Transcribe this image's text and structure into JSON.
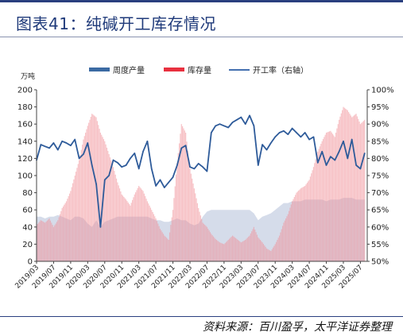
{
  "figure": {
    "title": "图表41：纯碱开工库存情况",
    "source": "资料来源：百川盈孚，太平洋证券整理"
  },
  "colors": {
    "bar": "#f08f98",
    "area": "#c7d0e3",
    "line": "#2e5b9a",
    "legend_weekly": "#3b6aa3",
    "legend_inventory": "#e8303f",
    "legend_rate": "#4470b0",
    "accent": "#1f3a7a"
  },
  "chart_data": {
    "type": "line",
    "title": "",
    "ylabel": "万吨",
    "ylim": [
      0,
      200
    ],
    "y_ticks": [
      "0",
      "20",
      "40",
      "60",
      "80",
      "100",
      "120",
      "140",
      "160",
      "180",
      "200"
    ],
    "y2lim": [
      50,
      100
    ],
    "y2_ticks": [
      "50%",
      "55%",
      "60%",
      "65%",
      "70%",
      "75%",
      "80%",
      "85%",
      "90%",
      "95%",
      "100%"
    ],
    "legend_position": "top",
    "legend": [
      "周度产量",
      "库存量",
      "开工率（右轴）"
    ],
    "x_tick_labels": [
      "2019/03",
      "2019/07",
      "2019/11",
      "2020/03",
      "2020/07",
      "2020/11",
      "2021/03",
      "2021/07",
      "2021/11",
      "2022/03",
      "2022/07",
      "2022/11",
      "2023/03",
      "2023/07",
      "2023/11",
      "2024/03",
      "2024/07",
      "2024/11",
      "2025/03",
      "2025/07"
    ],
    "x_start": "2019/03",
    "x_step": "1 month",
    "weekly_output": [
      {
        "x": "2019/03",
        "y": 118
      },
      {
        "x": "2019/04",
        "y": 136
      },
      {
        "x": "2019/05",
        "y": 134
      },
      {
        "x": "2019/06",
        "y": 132
      },
      {
        "x": "2019/07",
        "y": 138
      },
      {
        "x": "2019/08",
        "y": 130
      },
      {
        "x": "2019/09",
        "y": 140
      },
      {
        "x": "2019/10",
        "y": 138
      },
      {
        "x": "2019/11",
        "y": 135
      },
      {
        "x": "2019/12",
        "y": 142
      },
      {
        "x": "2020/01",
        "y": 120
      },
      {
        "x": "2020/02",
        "y": 125
      },
      {
        "x": "2020/03",
        "y": 138
      },
      {
        "x": "2020/04",
        "y": 112
      },
      {
        "x": "2020/05",
        "y": 90
      },
      {
        "x": "2020/06",
        "y": 40
      },
      {
        "x": "2020/07",
        "y": 95
      },
      {
        "x": "2020/08",
        "y": 100
      },
      {
        "x": "2020/09",
        "y": 118
      },
      {
        "x": "2020/10",
        "y": 115
      },
      {
        "x": "2020/11",
        "y": 110
      },
      {
        "x": "2020/12",
        "y": 112
      },
      {
        "x": "2021/01",
        "y": 120
      },
      {
        "x": "2021/02",
        "y": 126
      },
      {
        "x": "2021/03",
        "y": 108
      },
      {
        "x": "2021/04",
        "y": 128
      },
      {
        "x": "2021/05",
        "y": 140
      },
      {
        "x": "2021/06",
        "y": 108
      },
      {
        "x": "2021/07",
        "y": 88
      },
      {
        "x": "2021/08",
        "y": 95
      },
      {
        "x": "2021/09",
        "y": 86
      },
      {
        "x": "2021/10",
        "y": 92
      },
      {
        "x": "2021/11",
        "y": 98
      },
      {
        "x": "2021/12",
        "y": 112
      },
      {
        "x": "2022/01",
        "y": 132
      },
      {
        "x": "2022/02",
        "y": 135
      },
      {
        "x": "2022/03",
        "y": 110
      },
      {
        "x": "2022/04",
        "y": 108
      },
      {
        "x": "2022/05",
        "y": 114
      },
      {
        "x": "2022/06",
        "y": 110
      },
      {
        "x": "2022/07",
        "y": 105
      },
      {
        "x": "2022/08",
        "y": 150
      },
      {
        "x": "2022/09",
        "y": 158
      },
      {
        "x": "2022/10",
        "y": 160
      },
      {
        "x": "2022/11",
        "y": 158
      },
      {
        "x": "2022/12",
        "y": 156
      },
      {
        "x": "2023/01",
        "y": 162
      },
      {
        "x": "2023/02",
        "y": 165
      },
      {
        "x": "2023/03",
        "y": 168
      },
      {
        "x": "2023/04",
        "y": 160
      },
      {
        "x": "2023/05",
        "y": 170
      },
      {
        "x": "2023/06",
        "y": 158
      },
      {
        "x": "2023/07",
        "y": 112
      },
      {
        "x": "2023/08",
        "y": 136
      },
      {
        "x": "2023/09",
        "y": 130
      },
      {
        "x": "2023/10",
        "y": 138
      },
      {
        "x": "2023/11",
        "y": 145
      },
      {
        "x": "2023/12",
        "y": 150
      },
      {
        "x": "2024/01",
        "y": 152
      },
      {
        "x": "2024/02",
        "y": 148
      },
      {
        "x": "2024/03",
        "y": 155
      },
      {
        "x": "2024/04",
        "y": 150
      },
      {
        "x": "2024/05",
        "y": 145
      },
      {
        "x": "2024/06",
        "y": 150
      },
      {
        "x": "2024/07",
        "y": 142
      },
      {
        "x": "2024/08",
        "y": 145
      },
      {
        "x": "2024/09",
        "y": 115
      },
      {
        "x": "2024/10",
        "y": 128
      },
      {
        "x": "2024/11",
        "y": 112
      },
      {
        "x": "2024/12",
        "y": 122
      },
      {
        "x": "2025/01",
        "y": 118
      },
      {
        "x": "2025/02",
        "y": 128
      },
      {
        "x": "2025/03",
        "y": 140
      },
      {
        "x": "2025/04",
        "y": 120
      },
      {
        "x": "2025/05",
        "y": 142
      },
      {
        "x": "2025/06",
        "y": 112
      },
      {
        "x": "2025/07",
        "y": 108
      },
      {
        "x": "2025/08",
        "y": 126
      }
    ],
    "inventory": [
      {
        "x": "2019/03",
        "y": 42
      },
      {
        "x": "2019/04",
        "y": 48
      },
      {
        "x": "2019/05",
        "y": 45
      },
      {
        "x": "2019/06",
        "y": 50
      },
      {
        "x": "2019/07",
        "y": 40
      },
      {
        "x": "2019/08",
        "y": 48
      },
      {
        "x": "2019/09",
        "y": 62
      },
      {
        "x": "2019/10",
        "y": 70
      },
      {
        "x": "2019/11",
        "y": 82
      },
      {
        "x": "2019/12",
        "y": 100
      },
      {
        "x": "2020/01",
        "y": 118
      },
      {
        "x": "2020/02",
        "y": 142
      },
      {
        "x": "2020/03",
        "y": 158
      },
      {
        "x": "2020/04",
        "y": 172
      },
      {
        "x": "2020/05",
        "y": 168
      },
      {
        "x": "2020/06",
        "y": 150
      },
      {
        "x": "2020/07",
        "y": 140
      },
      {
        "x": "2020/08",
        "y": 125
      },
      {
        "x": "2020/09",
        "y": 110
      },
      {
        "x": "2020/10",
        "y": 92
      },
      {
        "x": "2020/11",
        "y": 78
      },
      {
        "x": "2020/12",
        "y": 72
      },
      {
        "x": "2021/01",
        "y": 65
      },
      {
        "x": "2021/02",
        "y": 78
      },
      {
        "x": "2021/03",
        "y": 88
      },
      {
        "x": "2021/04",
        "y": 82
      },
      {
        "x": "2021/05",
        "y": 70
      },
      {
        "x": "2021/06",
        "y": 60
      },
      {
        "x": "2021/07",
        "y": 50
      },
      {
        "x": "2021/08",
        "y": 38
      },
      {
        "x": "2021/09",
        "y": 30
      },
      {
        "x": "2021/10",
        "y": 25
      },
      {
        "x": "2021/11",
        "y": 60
      },
      {
        "x": "2021/12",
        "y": 115
      },
      {
        "x": "2022/01",
        "y": 160
      },
      {
        "x": "2022/02",
        "y": 150
      },
      {
        "x": "2022/03",
        "y": 108
      },
      {
        "x": "2022/04",
        "y": 85
      },
      {
        "x": "2022/05",
        "y": 62
      },
      {
        "x": "2022/06",
        "y": 45
      },
      {
        "x": "2022/07",
        "y": 40
      },
      {
        "x": "2022/08",
        "y": 32
      },
      {
        "x": "2022/09",
        "y": 26
      },
      {
        "x": "2022/10",
        "y": 22
      },
      {
        "x": "2022/11",
        "y": 20
      },
      {
        "x": "2022/12",
        "y": 25
      },
      {
        "x": "2023/01",
        "y": 30
      },
      {
        "x": "2023/02",
        "y": 26
      },
      {
        "x": "2023/03",
        "y": 22
      },
      {
        "x": "2023/04",
        "y": 25
      },
      {
        "x": "2023/05",
        "y": 30
      },
      {
        "x": "2023/06",
        "y": 40
      },
      {
        "x": "2023/07",
        "y": 28
      },
      {
        "x": "2023/08",
        "y": 22
      },
      {
        "x": "2023/09",
        "y": 15
      },
      {
        "x": "2023/10",
        "y": 12
      },
      {
        "x": "2023/11",
        "y": 20
      },
      {
        "x": "2023/12",
        "y": 30
      },
      {
        "x": "2024/01",
        "y": 45
      },
      {
        "x": "2024/02",
        "y": 55
      },
      {
        "x": "2024/03",
        "y": 70
      },
      {
        "x": "2024/04",
        "y": 80
      },
      {
        "x": "2024/05",
        "y": 85
      },
      {
        "x": "2024/06",
        "y": 88
      },
      {
        "x": "2024/07",
        "y": 95
      },
      {
        "x": "2024/08",
        "y": 110
      },
      {
        "x": "2024/09",
        "y": 128
      },
      {
        "x": "2024/10",
        "y": 140
      },
      {
        "x": "2024/11",
        "y": 150
      },
      {
        "x": "2024/12",
        "y": 152
      },
      {
        "x": "2025/01",
        "y": 145
      },
      {
        "x": "2025/02",
        "y": 165
      },
      {
        "x": "2025/03",
        "y": 180
      },
      {
        "x": "2025/04",
        "y": 176
      },
      {
        "x": "2025/05",
        "y": 168
      },
      {
        "x": "2025/06",
        "y": 172
      },
      {
        "x": "2025/07",
        "y": 160
      },
      {
        "x": "2025/08",
        "y": 165
      }
    ],
    "operating_rate_right_axis": [
      {
        "x": "2019/03",
        "y": 63
      },
      {
        "x": "2019/04",
        "y": 63
      },
      {
        "x": "2019/05",
        "y": 62.5
      },
      {
        "x": "2019/06",
        "y": 63
      },
      {
        "x": "2019/07",
        "y": 63
      },
      {
        "x": "2019/08",
        "y": 63.5
      },
      {
        "x": "2019/09",
        "y": 63
      },
      {
        "x": "2019/10",
        "y": 62.5
      },
      {
        "x": "2019/11",
        "y": 62
      },
      {
        "x": "2019/12",
        "y": 63
      },
      {
        "x": "2020/01",
        "y": 63
      },
      {
        "x": "2020/02",
        "y": 62.5
      },
      {
        "x": "2020/03",
        "y": 61
      },
      {
        "x": "2020/04",
        "y": 60
      },
      {
        "x": "2020/05",
        "y": 62
      },
      {
        "x": "2020/06",
        "y": 60
      },
      {
        "x": "2020/07",
        "y": 61.5
      },
      {
        "x": "2020/08",
        "y": 62
      },
      {
        "x": "2020/09",
        "y": 62.5
      },
      {
        "x": "2020/10",
        "y": 63
      },
      {
        "x": "2020/11",
        "y": 63
      },
      {
        "x": "2020/12",
        "y": 63
      },
      {
        "x": "2021/01",
        "y": 63
      },
      {
        "x": "2021/02",
        "y": 63
      },
      {
        "x": "2021/03",
        "y": 63
      },
      {
        "x": "2021/04",
        "y": 63
      },
      {
        "x": "2021/05",
        "y": 63
      },
      {
        "x": "2021/06",
        "y": 62.5
      },
      {
        "x": "2021/07",
        "y": 62
      },
      {
        "x": "2021/08",
        "y": 62
      },
      {
        "x": "2021/09",
        "y": 61.5
      },
      {
        "x": "2021/10",
        "y": 61.5
      },
      {
        "x": "2021/11",
        "y": 62
      },
      {
        "x": "2021/12",
        "y": 62.5
      },
      {
        "x": "2022/01",
        "y": 62
      },
      {
        "x": "2022/02",
        "y": 62
      },
      {
        "x": "2022/03",
        "y": 61
      },
      {
        "x": "2022/04",
        "y": 60.5
      },
      {
        "x": "2022/05",
        "y": 61
      },
      {
        "x": "2022/06",
        "y": 63
      },
      {
        "x": "2022/07",
        "y": 64.5
      },
      {
        "x": "2022/08",
        "y": 65
      },
      {
        "x": "2022/09",
        "y": 65
      },
      {
        "x": "2022/10",
        "y": 65
      },
      {
        "x": "2022/11",
        "y": 65
      },
      {
        "x": "2022/12",
        "y": 65
      },
      {
        "x": "2023/01",
        "y": 65
      },
      {
        "x": "2023/02",
        "y": 65
      },
      {
        "x": "2023/03",
        "y": 65
      },
      {
        "x": "2023/04",
        "y": 65
      },
      {
        "x": "2023/05",
        "y": 65
      },
      {
        "x": "2023/06",
        "y": 64
      },
      {
        "x": "2023/07",
        "y": 62
      },
      {
        "x": "2023/08",
        "y": 63
      },
      {
        "x": "2023/09",
        "y": 63.5
      },
      {
        "x": "2023/10",
        "y": 64
      },
      {
        "x": "2023/11",
        "y": 65
      },
      {
        "x": "2023/12",
        "y": 66
      },
      {
        "x": "2024/01",
        "y": 67
      },
      {
        "x": "2024/02",
        "y": 67
      },
      {
        "x": "2024/03",
        "y": 67.5
      },
      {
        "x": "2024/04",
        "y": 67.5
      },
      {
        "x": "2024/05",
        "y": 67.5
      },
      {
        "x": "2024/06",
        "y": 68
      },
      {
        "x": "2024/07",
        "y": 68
      },
      {
        "x": "2024/08",
        "y": 68
      },
      {
        "x": "2024/09",
        "y": 68
      },
      {
        "x": "2024/10",
        "y": 68
      },
      {
        "x": "2024/11",
        "y": 67.5
      },
      {
        "x": "2024/12",
        "y": 68
      },
      {
        "x": "2025/01",
        "y": 68
      },
      {
        "x": "2025/02",
        "y": 68
      },
      {
        "x": "2025/03",
        "y": 68.5
      },
      {
        "x": "2025/04",
        "y": 68.5
      },
      {
        "x": "2025/05",
        "y": 68.5
      },
      {
        "x": "2025/06",
        "y": 68
      },
      {
        "x": "2025/07",
        "y": 68
      },
      {
        "x": "2025/08",
        "y": 68
      }
    ]
  }
}
